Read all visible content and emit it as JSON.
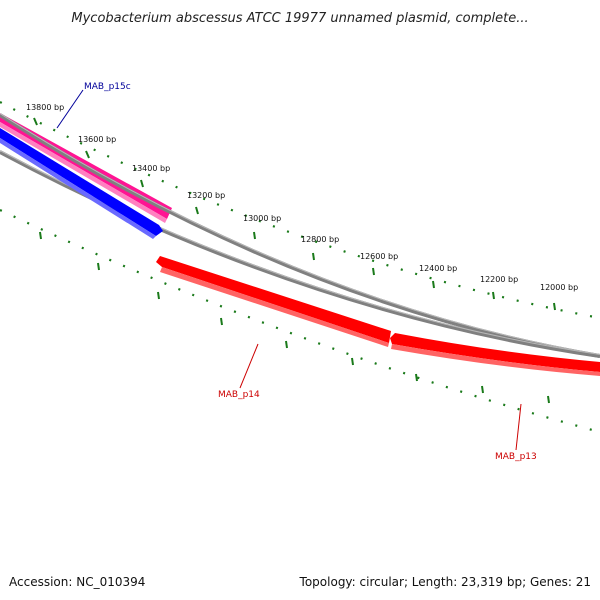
{
  "title": "Mycobacterium abscessus ATCC 19977 unnamed plasmid, complete...",
  "ticks": [
    "13800 bp",
    "13600 bp",
    "13400 bp",
    "13200 bp",
    "13000 bp",
    "12800 bp",
    "12600 bp",
    "12400 bp",
    "12200 bp",
    "12000 bp"
  ],
  "genes": [
    {
      "name": "MAB_p15c",
      "color": "#00009a",
      "fill": "#0000ff"
    },
    {
      "name": "MAB_p14",
      "color": "#cc0000",
      "fill": "#ff0000"
    },
    {
      "name": "MAB_p13",
      "color": "#cc0000",
      "fill": "#ff0000"
    }
  ],
  "footer": {
    "accession": "Accession: NC_010394",
    "summary": "Topology: circular; Length: 23,319 bp; Genes: 21"
  },
  "colors": {
    "tick_green": "#1a7a1a",
    "backbone": "#808080",
    "pink_feature": "#ff1493"
  }
}
